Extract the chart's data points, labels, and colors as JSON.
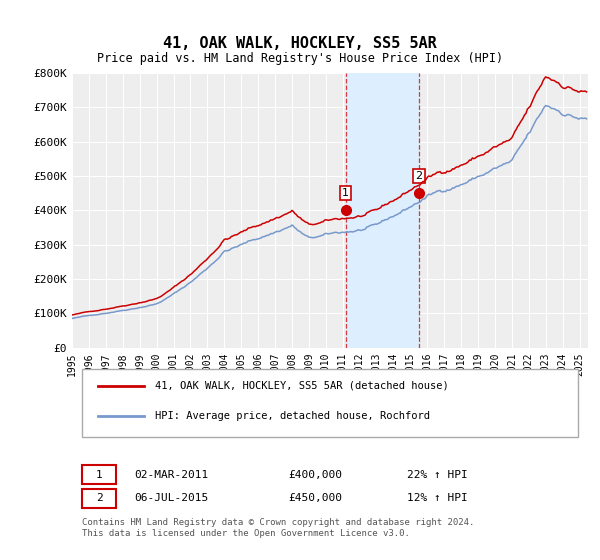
{
  "title": "41, OAK WALK, HOCKLEY, SS5 5AR",
  "subtitle": "Price paid vs. HM Land Registry's House Price Index (HPI)",
  "ylim": [
    0,
    800000
  ],
  "yticks": [
    0,
    100000,
    200000,
    300000,
    400000,
    500000,
    600000,
    700000,
    800000
  ],
  "ytick_labels": [
    "£0",
    "£100K",
    "£200K",
    "£300K",
    "£400K",
    "£500K",
    "£600K",
    "£700K",
    "£800K"
  ],
  "bg_color": "#ffffff",
  "plot_bg_color": "#eeeeee",
  "grid_color": "#ffffff",
  "red_color": "#cc0000",
  "blue_color": "#7799cc",
  "shade_color": "#ddeeff",
  "marker1_year": 2011.17,
  "marker1_price": 400000,
  "marker2_year": 2015.51,
  "marker2_price": 450000,
  "sale_years": [
    2011.17,
    2015.51
  ],
  "legend_line1": "41, OAK WALK, HOCKLEY, SS5 5AR (detached house)",
  "legend_line2": "HPI: Average price, detached house, Rochford",
  "table_row1": [
    "1",
    "02-MAR-2011",
    "£400,000",
    "22% ↑ HPI"
  ],
  "table_row2": [
    "2",
    "06-JUL-2015",
    "£450,000",
    "12% ↑ HPI"
  ],
  "footnote": "Contains HM Land Registry data © Crown copyright and database right 2024.\nThis data is licensed under the Open Government Licence v3.0.",
  "xmin": 1995,
  "xmax": 2025.5
}
